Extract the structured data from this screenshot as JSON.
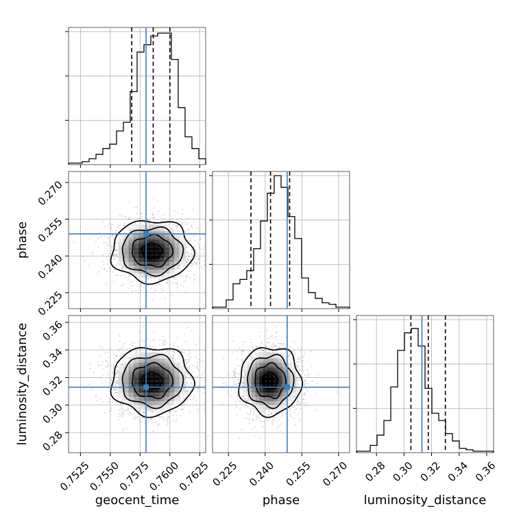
{
  "chart_data": {
    "type": "corner",
    "parameters": [
      "geocent_time",
      "phase",
      "luminosity_distance"
    ],
    "truths": {
      "geocent_time": 0.758,
      "phase": 0.249,
      "luminosity_distance": 0.313
    },
    "colors": {
      "truth": "#3a7fbf",
      "hist": "#000000",
      "grid": "#b0b0b0"
    },
    "ranges": {
      "geocent_time": [
        0.7515,
        0.763
      ],
      "phase": [
        0.2185,
        0.2745
      ],
      "luminosity_distance": [
        0.2655,
        0.365
      ]
    },
    "ticks": {
      "geocent_time": {
        "values": [
          0.7525,
          0.755,
          0.7575,
          0.76,
          0.7625
        ],
        "labels": [
          "0.7525",
          "0.7550",
          "0.7575",
          "0.7600",
          "0.7625"
        ]
      },
      "phase": {
        "values": [
          0.225,
          0.24,
          0.255,
          0.27
        ],
        "labels": [
          "0.225",
          "0.240",
          "0.255",
          "0.270"
        ]
      },
      "luminosity_distance": {
        "values": [
          0.28,
          0.3,
          0.32,
          0.34,
          0.36
        ],
        "labels": [
          "0.28",
          "0.30",
          "0.32",
          "0.34",
          "0.36"
        ]
      }
    },
    "quantiles": {
      "geocent_time": [
        0.7568,
        0.7586,
        0.76
      ],
      "phase": [
        0.2342,
        0.2422,
        0.25
      ],
      "luminosity_distance": [
        0.305,
        0.3176,
        0.33
      ]
    },
    "histograms": {
      "geocent_time": {
        "edges_start": 0.7515,
        "bin_width": 0.000575,
        "counts": [
          0.01,
          0.01,
          0.02,
          0.04,
          0.07,
          0.11,
          0.14,
          0.23,
          0.29,
          0.5,
          0.77,
          0.82,
          0.88,
          0.9,
          0.9,
          0.72,
          0.39,
          0.19,
          0.11,
          0.04
        ]
      },
      "phase": {
        "edges_start": 0.2185,
        "bin_width": 0.0028,
        "counts": [
          0.01,
          0.01,
          0.06,
          0.17,
          0.2,
          0.26,
          0.41,
          0.6,
          0.79,
          0.91,
          0.83,
          0.63,
          0.48,
          0.21,
          0.11,
          0.07,
          0.04,
          0.03,
          0.01,
          0.01
        ]
      },
      "luminosity_distance": {
        "edges_start": 0.2655,
        "bin_width": 0.004975,
        "counts": [
          0.01,
          0.01,
          0.05,
          0.12,
          0.22,
          0.45,
          0.7,
          0.82,
          0.85,
          0.73,
          0.44,
          0.27,
          0.22,
          0.13,
          0.08,
          0.03,
          0.02,
          0.01,
          0.01,
          0.01
        ]
      }
    },
    "posterior_2d": {
      "phase_vs_geocent_time": {
        "mean": [
          0.7585,
          0.242
        ],
        "sd": [
          0.0017,
          0.0063
        ]
      },
      "luminosity_distance_vs_geocent_time": {
        "mean": [
          0.7585,
          0.3175
        ],
        "sd": [
          0.0017,
          0.0123
        ]
      },
      "luminosity_distance_vs_phase": {
        "mean": [
          0.242,
          0.3175
        ],
        "sd": [
          0.0063,
          0.0123
        ]
      }
    }
  }
}
